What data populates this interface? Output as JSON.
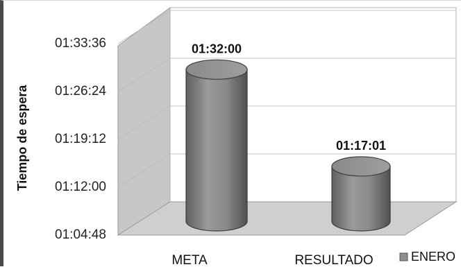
{
  "chart_data": {
    "type": "bar",
    "style": "3d-cylinder",
    "ylabel": "Tiempo de espera",
    "yticks": [
      "01:04:48",
      "01:12:00",
      "01:19:12",
      "01:26:24",
      "01:33:36"
    ],
    "ylim": [
      "01:04:48",
      "01:38:00"
    ],
    "categories": [
      "META",
      "RESULTADO"
    ],
    "series": [
      {
        "name": "ENERO",
        "values": [
          "01:32:00",
          "01:17:01"
        ],
        "labels": [
          "01:32:00",
          "01:17:01"
        ],
        "color": "#8f8f8f"
      }
    ],
    "grid": true,
    "legend": "right"
  }
}
